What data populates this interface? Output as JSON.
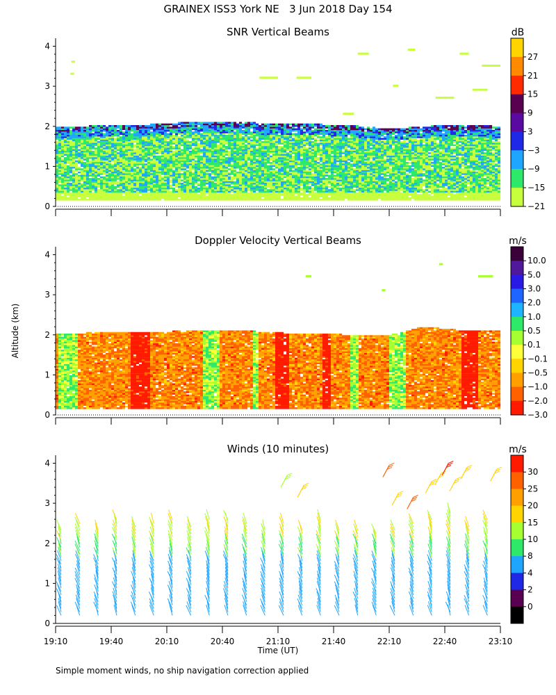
{
  "title": "GRAINEX ISS3 York NE   3 Jun 2018 Day 154",
  "footnote": "Simple moment winds, no ship navigation correction applied",
  "chart_data": [
    {
      "type": "heatmap",
      "title": "SNR Vertical Beams",
      "xlabel": "",
      "ylabel": "",
      "xlim": [
        0,
        240
      ],
      "ylim": [
        0,
        4.2
      ],
      "yticks": [
        0,
        1,
        2,
        3,
        4
      ],
      "colorbar": {
        "unit": "dB",
        "labels": [
          "27",
          "21",
          "15",
          "9",
          "3",
          "−3",
          "−9",
          "−15",
          "−21"
        ],
        "colors": [
          "#ffd400",
          "#ff8a00",
          "#ff2a00",
          "#5a0050",
          "#5a0aa0",
          "#1e28e6",
          "#1ea6ff",
          "#2ee86a",
          "#c8ff3c"
        ]
      },
      "layer_top_km": [
        1.98,
        1.98,
        2.0,
        2.0,
        2.02,
        2.05,
        2.08,
        2.1,
        2.1,
        2.08,
        2.05,
        2.05,
        2.04,
        2.02,
        2.0,
        1.95,
        1.92,
        1.97,
        2.0,
        2.0,
        2.0,
        1.98
      ],
      "structure": "dense returns 0.15-2.1 km; strongest band near 1.8-2.05 km; sparse echoes 2.6-4 km"
    },
    {
      "type": "heatmap",
      "title": "Doppler Velocity Vertical Beams",
      "xlabel": "",
      "ylabel": "Altitude (km)",
      "xlim": [
        0,
        240
      ],
      "ylim": [
        0,
        4.2
      ],
      "yticks": [
        0,
        1,
        2,
        3,
        4
      ],
      "colorbar": {
        "unit": "m/s",
        "labels": [
          "10.0",
          "5.0",
          "3.0",
          "2.0",
          "1.0",
          "0.5",
          "0.1",
          "−0.1",
          "−0.5",
          "−1.0",
          "−2.0",
          "−3.0"
        ],
        "colors": [
          "#3a003a",
          "#50189a",
          "#2a1ae6",
          "#1e64ff",
          "#1eb4ff",
          "#2ee86a",
          "#a6ff30",
          "#ffff3a",
          "#ffd400",
          "#ffa000",
          "#ff6000",
          "#ff1a00"
        ]
      },
      "layer_top_km": [
        2.02,
        2.02,
        2.05,
        2.05,
        2.05,
        2.06,
        2.08,
        2.1,
        2.1,
        2.08,
        2.05,
        2.02,
        2.02,
        2.0,
        1.98,
        1.95,
        2.0,
        2.15,
        2.15,
        2.1,
        2.1,
        2.1
      ],
      "structure": "mostly small negative (downward) velocities below 2.1 km with updraft columns"
    },
    {
      "type": "scatter",
      "title": "Winds (10 minutes)",
      "xlabel": "Time (UT)",
      "ylabel": "",
      "xlim": [
        0,
        240
      ],
      "ylim": [
        0,
        4.2
      ],
      "yticks": [
        0,
        1,
        2,
        3,
        4
      ],
      "xticks": [
        0,
        30,
        60,
        90,
        120,
        150,
        180,
        210,
        240
      ],
      "xtick_labels": [
        "19:10",
        "19:40",
        "20:10",
        "20:40",
        "21:10",
        "21:40",
        "22:10",
        "22:40",
        "23:10"
      ],
      "colorbar": {
        "unit": "m/s",
        "labels": [
          "30",
          "25",
          "20",
          "15",
          "10",
          "8",
          "4",
          "2",
          "0"
        ],
        "colors": [
          "#ff1a00",
          "#ff6000",
          "#ffa000",
          "#ffd400",
          "#a6ff30",
          "#2ee86a",
          "#1ea6ff",
          "#1e28e6",
          "#5a0050",
          "#000000"
        ]
      },
      "wind_profiles_minutes": [
        3,
        13,
        23,
        33,
        43,
        53,
        63,
        73,
        83,
        93,
        103,
        113,
        123,
        133,
        143,
        153,
        163,
        173,
        183,
        193,
        203,
        213,
        223,
        233
      ],
      "wind_profile_tops_km": [
        2.35,
        2.5,
        2.35,
        2.6,
        2.45,
        2.5,
        2.6,
        2.45,
        2.65,
        2.65,
        2.5,
        2.4,
        2.55,
        2.35,
        2.65,
        2.35,
        2.4,
        2.3,
        2.4,
        2.55,
        2.6,
        2.75,
        2.45,
        2.6
      ],
      "speed_bands_m_s": [
        [
          0.2,
          1.6,
          5
        ],
        [
          1.6,
          2.0,
          9
        ],
        [
          2.0,
          3.0,
          14
        ]
      ],
      "upper_barbs": [
        {
          "t": 125,
          "alt": 3.7,
          "speed": 14
        },
        {
          "t": 134,
          "alt": 3.45,
          "speed": 15
        },
        {
          "t": 180,
          "alt": 3.95,
          "speed": 28
        },
        {
          "t": 185,
          "alt": 3.25,
          "speed": 18
        },
        {
          "t": 193,
          "alt": 3.15,
          "speed": 26
        },
        {
          "t": 203,
          "alt": 3.55,
          "speed": 19
        },
        {
          "t": 208,
          "alt": 3.75,
          "speed": 17
        },
        {
          "t": 212,
          "alt": 4.0,
          "speed": 30
        },
        {
          "t": 216,
          "alt": 3.6,
          "speed": 18
        },
        {
          "t": 222,
          "alt": 3.9,
          "speed": 16
        },
        {
          "t": 238,
          "alt": 3.85,
          "speed": 19
        }
      ]
    }
  ]
}
